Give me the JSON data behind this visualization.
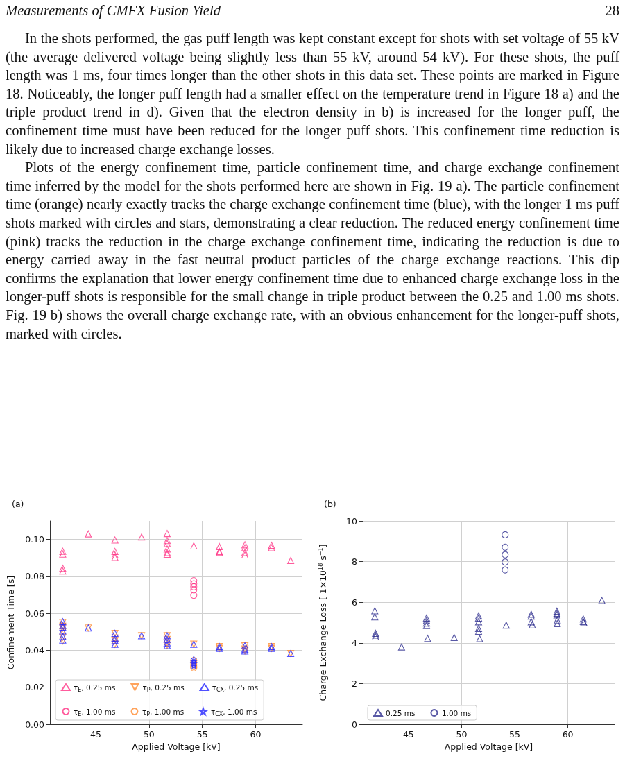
{
  "chart_data": [
    {
      "type": "scatter",
      "title": "(a)",
      "xlabel": "Applied Voltage [kV]",
      "ylabel": "Confinement Time [s]",
      "annotations": [
        "Measurements of CMFX Fusion Yield",
        "28",
        "In the shots performed, the gas puff length was kept constant except for shots with set voltage of 55 kV (the average delivered voltage being slightly less than 55 kV, around 54 kV). For these shots, the puff length was 1 ms, four times longer than the other shots in this data set. These points are marked in Figure 18. Noticeably, the longer puff length had a smaller effect on the temperature trend in Figure 18 a) and the triple product trend in d). Given that the electron density in b) is increased for the longer puff, the confinement time must have been reduced for the longer puff shots. This confinement time reduction is likely due to increased charge exchange losses.",
        "Plots of the energy confinement time, particle confinement time, and charge exchange confinement time inferred by the model for the shots performed here are shown in Fig. 19 a). The particle confinement time (orange) nearly exactly tracks the charge exchange confinement time (blue), with the longer 1 ms puff shots marked with circles and stars, demonstrating a clear reduction. The reduced energy confinement time (pink) tracks the reduction in the charge exchange confinement time, indicating the reduction is due to energy carried away in the fast neutral product particles of the charge exchange reactions. This dip confirms the explanation that lower energy confinement time due to enhanced charge exchange loss in the longer-puff shots is responsible for the small change in triple product between the 0.25 and 1.00 ms shots. Fig. 19 b) shows the overall charge exchange rate, with an obvious enhancement for the longer-puff shots, marked with circles."
      ],
      "xlim": [
        40.7,
        64.4
      ],
      "xticks": [
        45,
        50,
        55,
        60
      ],
      "ylim": [
        0,
        0.11
      ],
      "yticks": [
        {
          "value": 0,
          "label": "0.00"
        },
        0.02,
        0.04,
        0.06,
        0.08,
        {
          "value": 0.1,
          "label": "0.10"
        }
      ],
      "grid": true,
      "legend": "bottom left",
      "series": [
        {
          "name": "τ$_{E}$, 0.25 ms",
          "color": "#ff3385",
          "marker": "triangle",
          "x": [
            41.9,
            41.9,
            41.9,
            41.9,
            44.3,
            46.8,
            46.8,
            46.8,
            46.8,
            49.3,
            51.7,
            51.7,
            51.7,
            51.7,
            51.7,
            51.7,
            54.2,
            56.6,
            56.6,
            56.6,
            59.0,
            59.0,
            59.0,
            59.0,
            61.5,
            61.5,
            63.3
          ],
          "values": [
            0.0936,
            0.0921,
            0.0844,
            0.0829,
            0.103,
            0.0997,
            0.0935,
            0.0916,
            0.0903,
            0.1013,
            0.1032,
            0.0994,
            0.0978,
            0.0948,
            0.0929,
            0.092,
            0.0965,
            0.0961,
            0.0935,
            0.093,
            0.0971,
            0.0955,
            0.0929,
            0.0916,
            0.0968,
            0.0955,
            0.0886
          ]
        },
        {
          "name": "τ$_{P}$, 0.25 ms",
          "color": "#ff8c33",
          "marker": "triangle-down",
          "x": [
            41.9,
            41.9,
            41.9,
            41.9,
            41.9,
            41.9,
            44.3,
            46.8,
            46.8,
            46.8,
            46.8,
            49.3,
            51.7,
            51.7,
            51.7,
            51.7,
            54.2,
            56.6,
            56.6,
            59.0,
            59.0,
            59.0,
            61.5,
            61.5,
            63.3
          ],
          "values": [
            0.055,
            0.053,
            0.052,
            0.05,
            0.047,
            0.045,
            0.0521,
            0.0492,
            0.0466,
            0.0453,
            0.0433,
            0.0479,
            0.0479,
            0.0459,
            0.044,
            0.0426,
            0.0433,
            0.042,
            0.041,
            0.0424,
            0.0407,
            0.0396,
            0.042,
            0.041,
            0.0383
          ]
        },
        {
          "name": "τ$_{CX}$, 0.25 ms",
          "color": "#2424ff",
          "marker": "triangle",
          "x": [
            41.9,
            41.9,
            41.9,
            41.9,
            41.9,
            41.9,
            44.3,
            46.8,
            46.8,
            46.8,
            46.8,
            49.3,
            51.7,
            51.7,
            51.7,
            51.7,
            54.2,
            56.6,
            56.6,
            59.0,
            59.0,
            59.0,
            61.5,
            61.5,
            63.3
          ],
          "values": [
            0.0555,
            0.0535,
            0.0525,
            0.0505,
            0.0475,
            0.0455,
            0.0521,
            0.0492,
            0.0466,
            0.0453,
            0.0433,
            0.0479,
            0.0479,
            0.0459,
            0.044,
            0.0426,
            0.0433,
            0.042,
            0.041,
            0.0424,
            0.0407,
            0.0396,
            0.042,
            0.041,
            0.0383
          ]
        },
        {
          "name": "τ$_{E}$, 1.00 ms",
          "color": "#ff3385",
          "marker": "circle",
          "x": [
            54.2,
            54.2,
            54.2,
            54.2,
            54.2
          ],
          "values": [
            0.0777,
            0.076,
            0.0744,
            0.0727,
            0.0698
          ]
        },
        {
          "name": "τ$_{P}$, 1.00 ms",
          "color": "#ff8c33",
          "marker": "circle",
          "x": [
            54.2,
            54.2,
            54.2,
            54.2,
            54.2
          ],
          "values": [
            0.0345,
            0.0333,
            0.0321,
            0.0312,
            0.0305
          ]
        },
        {
          "name": "τ$_{CX}$, 1.00 ms",
          "color": "#2424ff",
          "marker": "star",
          "x": [
            54.2,
            54.2,
            54.2,
            54.2
          ],
          "values": [
            0.0354,
            0.0341,
            0.0328,
            0.0316
          ]
        }
      ]
    },
    {
      "type": "scatter",
      "title": "(b)",
      "xlabel": "Applied Voltage [kV]",
      "ylabel": "Charge Exchange Loss [ 1×10$^{18}$ s$^{−1}$]",
      "xlim": [
        40.7,
        64.4
      ],
      "xticks": [
        45,
        50,
        55,
        60
      ],
      "ylim": [
        0,
        10
      ],
      "yticks": [
        0,
        2,
        4,
        6,
        8,
        10
      ],
      "grid": true,
      "legend": "bottom left",
      "series": [
        {
          "name": "0.25 ms",
          "color": "#2e2e8f",
          "marker": "triangle",
          "x": [
            41.83,
            41.83,
            41.9,
            41.9,
            41.9,
            44.35,
            46.7,
            46.7,
            46.7,
            46.7,
            46.8,
            49.3,
            51.6,
            51.6,
            51.6,
            51.6,
            51.6,
            51.7,
            54.2,
            56.55,
            56.55,
            56.55,
            56.65,
            58.97,
            58.97,
            58.97,
            59.0,
            59.0,
            61.45,
            61.45,
            61.5,
            63.2
          ],
          "values": [
            5.58,
            5.28,
            4.47,
            4.39,
            4.3,
            3.8,
            5.22,
            5.1,
            4.98,
            4.86,
            4.22,
            4.27,
            5.33,
            5.22,
            5.04,
            4.71,
            4.57,
            4.21,
            4.87,
            5.41,
            5.32,
            5.04,
            4.89,
            5.56,
            5.46,
            5.38,
            5.13,
            4.95,
            5.18,
            5.05,
            5.0,
            6.09
          ]
        },
        {
          "name": "1.00 ms",
          "color": "#2e2e8f",
          "marker": "circle",
          "x": [
            54.1,
            54.1,
            54.1,
            54.1,
            54.1
          ],
          "values": [
            9.32,
            8.71,
            8.34,
            7.98,
            7.59
          ]
        }
      ]
    }
  ]
}
